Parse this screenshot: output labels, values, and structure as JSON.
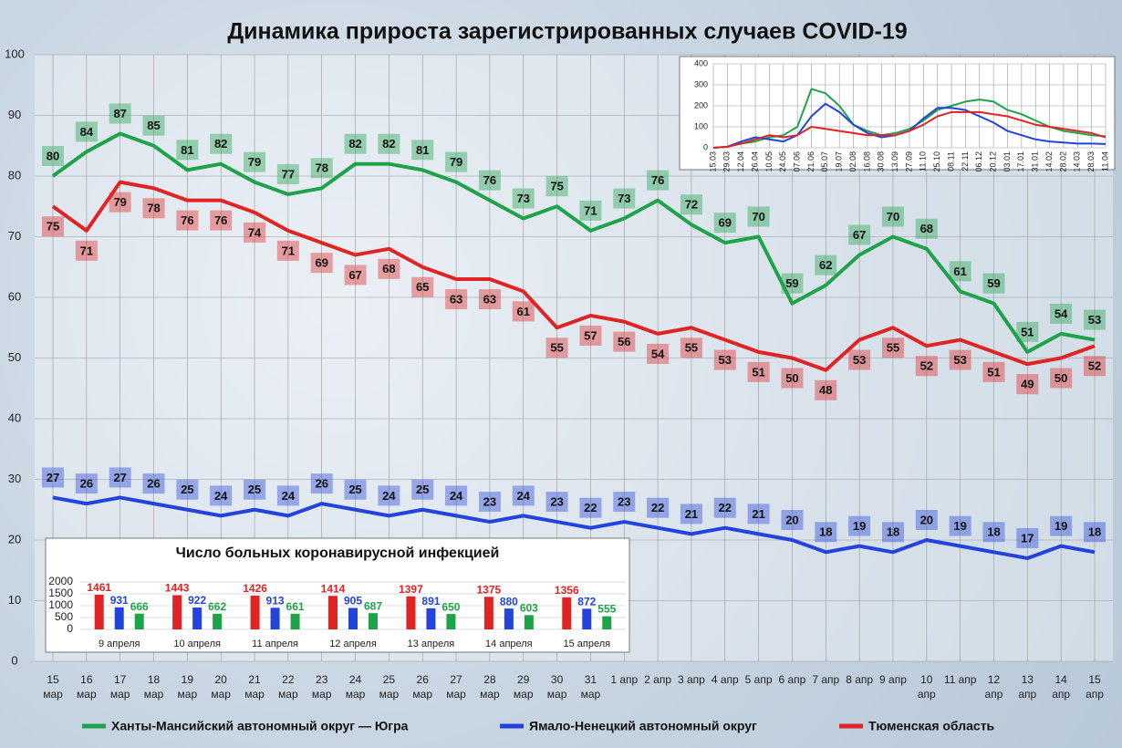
{
  "chart_data": [
    {
      "type": "line",
      "title": "Динамика прироста зарегистрированных случаев COVID-19",
      "categories": [
        "15 мар",
        "16 мар",
        "17 мар",
        "18 мар",
        "19 мар",
        "20 мар",
        "21 мар",
        "22 мар",
        "23 мар",
        "24 мар",
        "25 мар",
        "26 мар",
        "27 мар",
        "28 мар",
        "29 мар",
        "30 мар",
        "31 мар",
        "1 апр",
        "2 апр",
        "3 апр",
        "4 апр",
        "5 апр",
        "6 апр",
        "7 апр",
        "8 апр",
        "9 апр",
        "10 апр",
        "11 апр",
        "12 апр",
        "13 апр",
        "14 апр",
        "15 апр"
      ],
      "series": [
        {
          "name": "Ханты-Мансийский автономный округ — Югра",
          "color": "#1fa34a",
          "values": [
            80,
            84,
            87,
            85,
            81,
            82,
            79,
            77,
            78,
            82,
            82,
            81,
            79,
            76,
            73,
            75,
            71,
            73,
            76,
            72,
            69,
            70,
            59,
            62,
            67,
            70,
            68,
            61,
            59,
            51,
            54,
            53
          ]
        },
        {
          "name": "Ямало-Ненецкий автономный округ",
          "color": "#2244dd",
          "values": [
            27,
            26,
            27,
            26,
            25,
            24,
            25,
            24,
            26,
            25,
            24,
            25,
            24,
            23,
            24,
            23,
            22,
            23,
            22,
            21,
            22,
            21,
            20,
            18,
            19,
            18,
            20,
            19,
            18,
            17,
            19,
            18
          ]
        },
        {
          "name": "Тюменская область",
          "color": "#e02424",
          "values": [
            75,
            71,
            79,
            78,
            76,
            76,
            74,
            71,
            69,
            67,
            68,
            65,
            63,
            63,
            61,
            55,
            57,
            56,
            54,
            55,
            53,
            51,
            50,
            48,
            53,
            55,
            52,
            53,
            51,
            49,
            50,
            52
          ]
        }
      ],
      "ylim": [
        0,
        100
      ],
      "yticks": [
        0,
        10,
        20,
        30,
        40,
        50,
        60,
        70,
        80,
        90,
        100
      ],
      "grid": true,
      "legend": "bottom"
    },
    {
      "type": "line",
      "categories": [
        "15.03",
        "29.03",
        "12.04",
        "26.04",
        "10.05",
        "24.05",
        "07.06",
        "21.06",
        "05.07",
        "19.07",
        "02.08",
        "16.08",
        "30.08",
        "13.09",
        "27.09",
        "11.10",
        "25.10",
        "08.11",
        "22.11",
        "06.12",
        "20.12",
        "03.01",
        "17.01",
        "31.01",
        "14.02",
        "28.02",
        "14.03",
        "28.03",
        "11.04"
      ],
      "series": [
        {
          "color": "#1fa34a",
          "values": [
            0,
            5,
            20,
            30,
            50,
            60,
            100,
            280,
            260,
            200,
            110,
            80,
            60,
            70,
            90,
            130,
            180,
            200,
            220,
            230,
            220,
            180,
            160,
            130,
            100,
            80,
            70,
            60,
            55
          ]
        },
        {
          "color": "#2244dd",
          "values": [
            0,
            5,
            30,
            50,
            40,
            30,
            60,
            150,
            210,
            170,
            110,
            70,
            50,
            60,
            80,
            140,
            190,
            190,
            180,
            150,
            120,
            80,
            60,
            40,
            30,
            25,
            20,
            20,
            18
          ]
        },
        {
          "color": "#e02424",
          "values": [
            0,
            5,
            20,
            40,
            60,
            50,
            60,
            100,
            90,
            80,
            70,
            60,
            60,
            60,
            80,
            110,
            150,
            170,
            170,
            170,
            160,
            150,
            130,
            110,
            100,
            90,
            80,
            70,
            50
          ]
        }
      ],
      "ylim": [
        0,
        400
      ],
      "yticks": [
        0,
        100,
        200,
        300,
        400
      ],
      "grid": true
    },
    {
      "type": "bar",
      "title": "Число больных коронавирусной инфекцией",
      "categories": [
        "9 апреля",
        "10 апреля",
        "11 апреля",
        "12 апреля",
        "13 апреля",
        "14 апреля",
        "15 апреля"
      ],
      "series": [
        {
          "color": "#e02424",
          "values": [
            1461,
            1443,
            1426,
            1414,
            1397,
            1375,
            1356
          ]
        },
        {
          "color": "#2244dd",
          "values": [
            931,
            922,
            913,
            905,
            891,
            880,
            872
          ]
        },
        {
          "color": "#1fa34a",
          "values": [
            666,
            662,
            661,
            687,
            650,
            603,
            555
          ]
        }
      ],
      "ylim": [
        0,
        2000
      ],
      "yticks": [
        0,
        500,
        1000,
        1500,
        2000
      ],
      "grid": true
    }
  ]
}
